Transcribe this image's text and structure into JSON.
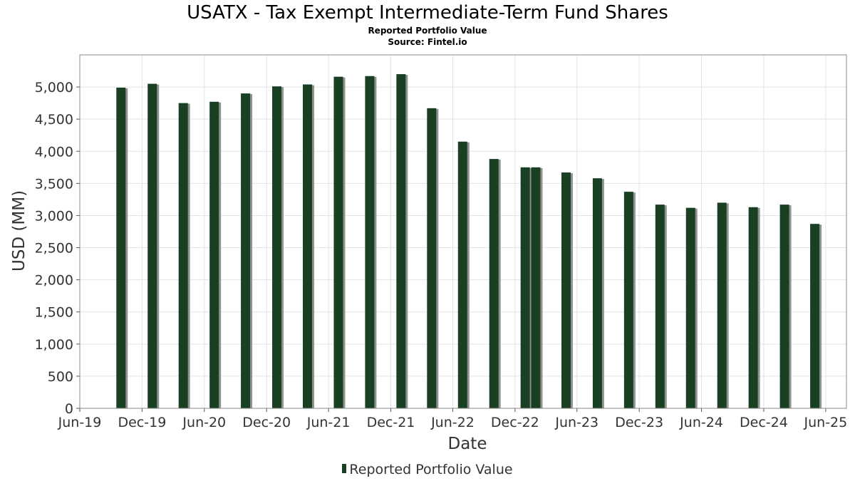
{
  "header": {
    "title": "USATX - Tax Exempt Intermediate-Term Fund Shares",
    "subtitle": "Reported Portfolio Value",
    "source": "Source: Fintel.io"
  },
  "legend": {
    "label": "Reported Portfolio Value"
  },
  "colors": {
    "bar": "#1a4023",
    "bar_shadow": "#8f938f",
    "grid": "#e3e3e3",
    "frame": "#8a8a8a",
    "background": "#ffffff"
  },
  "chart_data": {
    "type": "bar",
    "title": "USATX - Tax Exempt Intermediate-Term Fund Shares",
    "subtitle": "Reported Portfolio Value",
    "xlabel": "Date",
    "ylabel": "USD (MM)",
    "ylim": [
      0,
      5500
    ],
    "yticks": [
      0,
      500,
      1000,
      1500,
      2000,
      2500,
      3000,
      3500,
      4000,
      4500,
      5000
    ],
    "ytick_labels": [
      "0",
      "500",
      "1,000",
      "1,500",
      "2,000",
      "2,500",
      "3,000",
      "3,500",
      "4,000",
      "4,500",
      "5,000"
    ],
    "xlim": [
      "2019-06-01",
      "2025-08-01"
    ],
    "xticks": [
      "2019-06-01",
      "2019-12-01",
      "2020-06-01",
      "2020-12-01",
      "2021-06-01",
      "2021-12-01",
      "2022-06-01",
      "2022-12-01",
      "2023-06-01",
      "2023-12-01",
      "2024-06-01",
      "2024-12-01",
      "2025-06-01"
    ],
    "xtick_labels": [
      "Jun-19",
      "Dec-19",
      "Jun-20",
      "Dec-20",
      "Jun-21",
      "Dec-21",
      "Jun-22",
      "Dec-22",
      "Jun-23",
      "Dec-23",
      "Jun-24",
      "Dec-24",
      "Jun-25"
    ],
    "grid": true,
    "legend_position": "bottom",
    "series": [
      {
        "name": "Reported Portfolio Value",
        "x": [
          "2019-09-30",
          "2019-12-31",
          "2020-03-31",
          "2020-06-30",
          "2020-09-30",
          "2020-12-31",
          "2021-03-31",
          "2021-06-30",
          "2021-09-30",
          "2021-12-31",
          "2022-03-31",
          "2022-06-30",
          "2022-09-30",
          "2022-12-31",
          "2023-01-31",
          "2023-04-30",
          "2023-07-31",
          "2023-10-31",
          "2024-01-31",
          "2024-04-30",
          "2024-07-31",
          "2024-10-31",
          "2025-01-31",
          "2025-04-30"
        ],
        "values": [
          4990,
          5050,
          4750,
          4770,
          4900,
          5010,
          5040,
          5160,
          5170,
          5200,
          4670,
          4150,
          3880,
          3750,
          3750,
          3670,
          3580,
          3370,
          3170,
          3120,
          3200,
          3130,
          3170,
          2870
        ]
      }
    ]
  }
}
